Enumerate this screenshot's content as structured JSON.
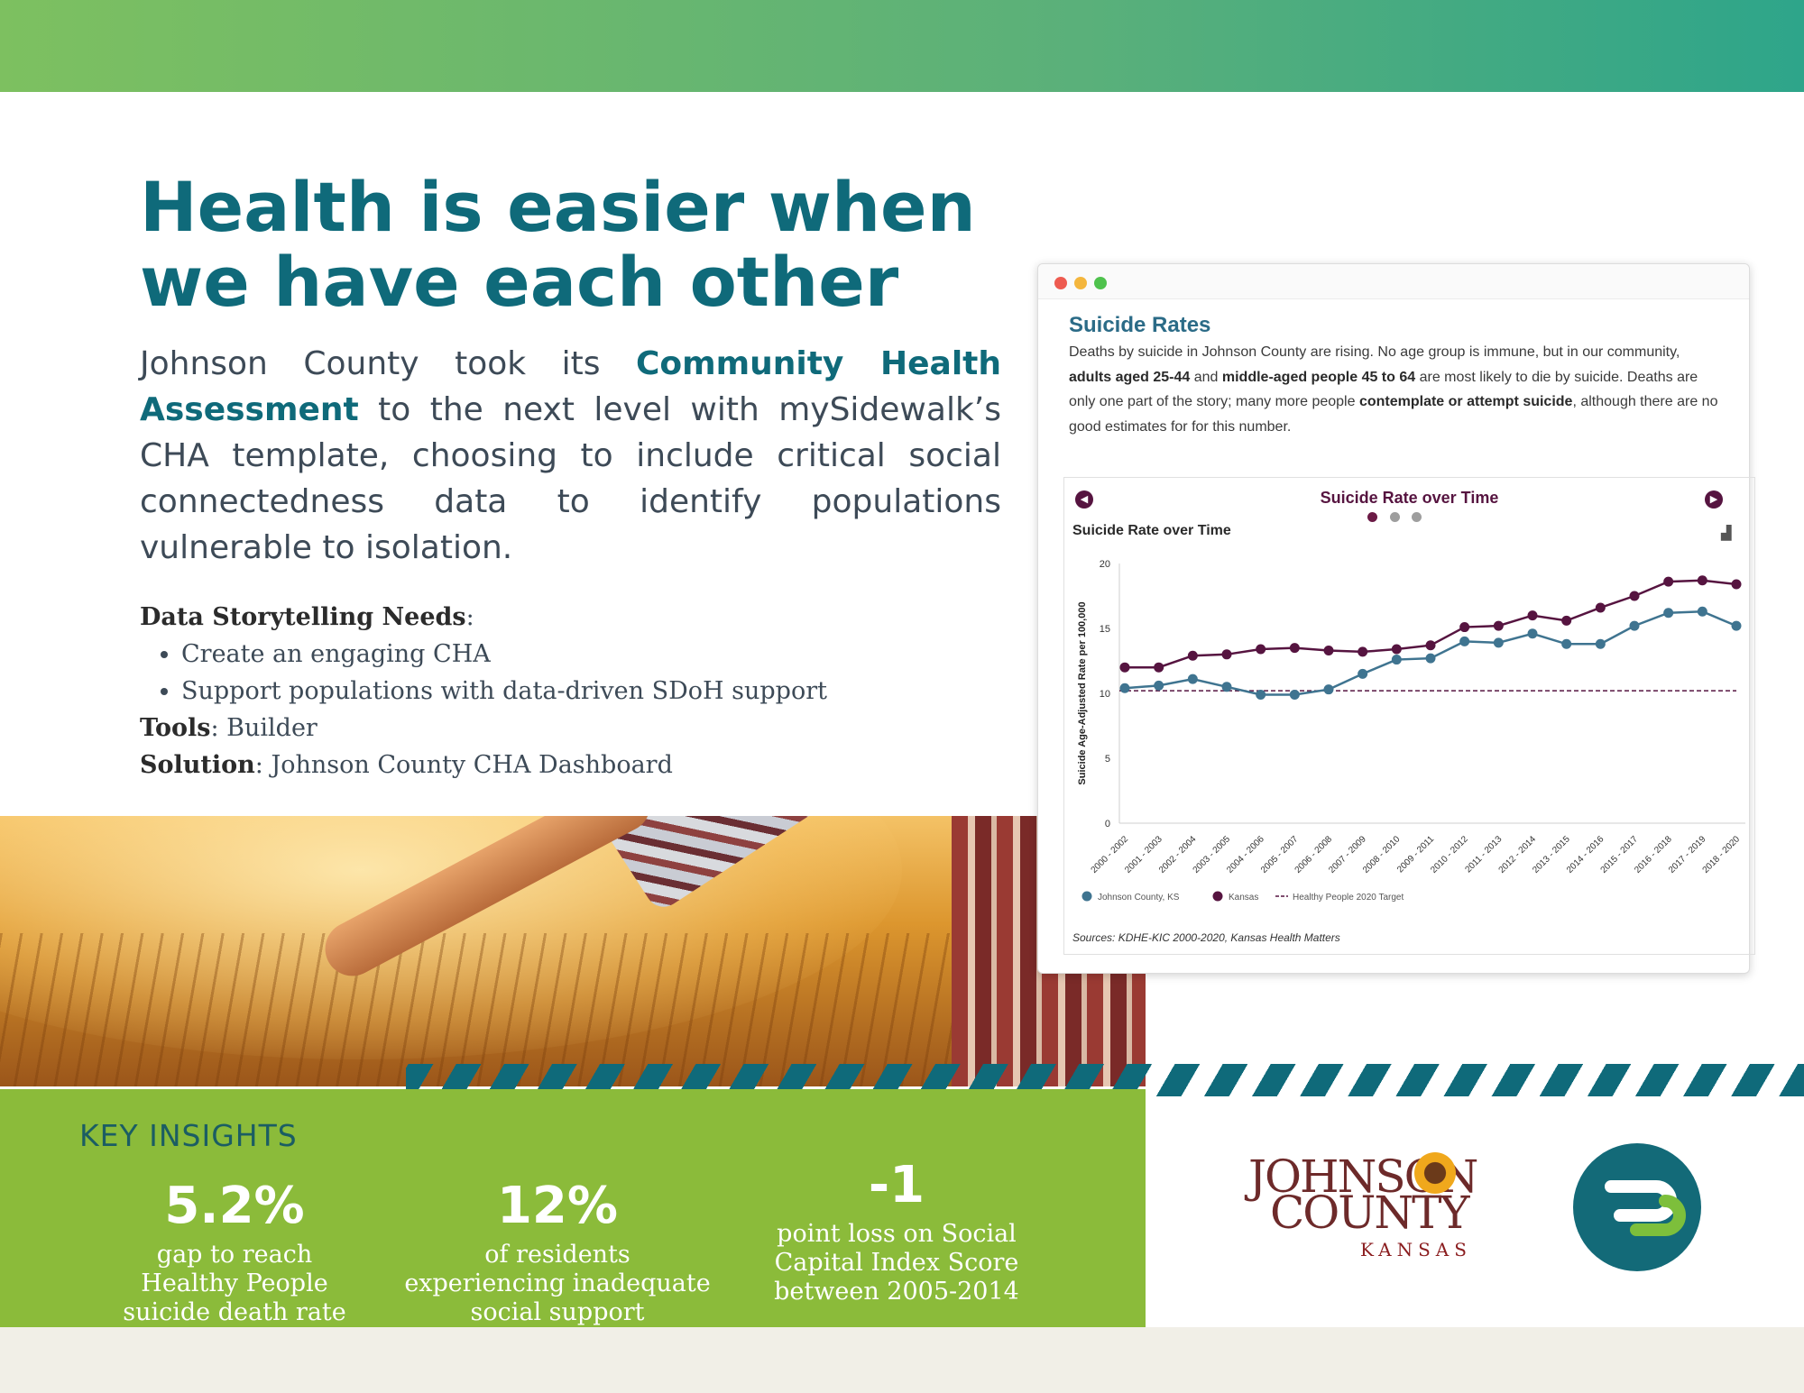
{
  "page": {
    "headline_line1": "Health is easier when",
    "headline_line2": "we have each other",
    "intro": {
      "lead": "Johnson County took its ",
      "highlight": "Community Health Assessment",
      "rest": " to the next level with mySidewalk’s CHA template, choosing to include critical social connectedness data to identify populations vulnerable to isolation."
    },
    "needs_label": "Data Storytelling Needs",
    "needs_items": [
      "Create an engaging CHA",
      "Support populations with data-driven SDoH support"
    ],
    "tools_label": "Tools",
    "tools_value": "Builder",
    "solution_label": "Solution",
    "solution_value": "Johnson County CHA Dashboard"
  },
  "insights": {
    "heading": "KEY INSIGHTS",
    "stats": [
      {
        "value": "5.2%",
        "desc_lines": [
          "gap to reach",
          "Healthy People",
          "suicide death rate"
        ]
      },
      {
        "value": "12%",
        "desc_lines": [
          "of residents",
          "experiencing inadequate",
          "social support"
        ]
      },
      {
        "value": "-1",
        "desc_lines": [
          "point loss on Social",
          "Capital Index Score",
          "between 2005-2014"
        ]
      }
    ]
  },
  "card": {
    "title": "Suicide Rates",
    "desc": {
      "p1": "Deaths by suicide in Johnson County are rising. No age group is immune, but in our community, ",
      "b1": "adults aged 25-44",
      "p2": " and ",
      "b2": "middle-aged people 45 to 64",
      "p3": " are most likely to die by suicide. Deaths are only one part of the story; many more people ",
      "b3": "contemplate or attempt suicide",
      "p4": ", although there are no good estimates for for this number."
    },
    "nav_title": "Suicide Rate over Time",
    "chart_title": "Suicide Rate over Time",
    "source": "Sources: KDHE-KIC 2000-2020, Kansas Health Matters",
    "colors": {
      "johnson": "#3f7490",
      "kansas": "#561440",
      "target": "#561440",
      "active_dot": "#6b1a45",
      "inactive_dot": "#9e9e9e"
    }
  },
  "chart_data": {
    "type": "line",
    "title": "Suicide Rate over Time",
    "xlabel": "",
    "ylabel": "Suicide Age-Adjusted Rate per 100,000",
    "ylim": [
      0,
      20
    ],
    "yticks": [
      0,
      5,
      10,
      15,
      20
    ],
    "grid": false,
    "legend_position": "bottom-left",
    "categories": [
      "2000 - 2002",
      "2001 - 2003",
      "2002 - 2004",
      "2003 - 2005",
      "2004 - 2006",
      "2005 - 2007",
      "2006 - 2008",
      "2007 - 2009",
      "2008 - 2010",
      "2009 - 2011",
      "2010 - 2012",
      "2011 - 2013",
      "2012 - 2014",
      "2013 - 2015",
      "2014 - 2016",
      "2015 - 2017",
      "2016 - 2018",
      "2017 - 2019",
      "2018 - 2020"
    ],
    "series": [
      {
        "name": "Johnson County, KS",
        "values": [
          10.4,
          10.6,
          11.1,
          10.5,
          9.9,
          9.9,
          10.3,
          11.5,
          12.6,
          12.7,
          14.0,
          13.9,
          14.6,
          13.8,
          13.8,
          15.2,
          16.2,
          16.3,
          15.2
        ]
      },
      {
        "name": "Kansas",
        "values": [
          12.0,
          12.0,
          12.9,
          13.0,
          13.4,
          13.5,
          13.3,
          13.2,
          13.4,
          13.7,
          15.1,
          15.2,
          16.0,
          15.6,
          16.6,
          17.5,
          18.6,
          18.7,
          18.4
        ]
      }
    ],
    "reference_line": {
      "name": "Healthy People 2020 Target",
      "value": 10.2
    }
  },
  "logos": {
    "johnson_line1": "JOHNSON",
    "johnson_line2": "COUNTY",
    "johnson_line3": "KANSAS"
  }
}
